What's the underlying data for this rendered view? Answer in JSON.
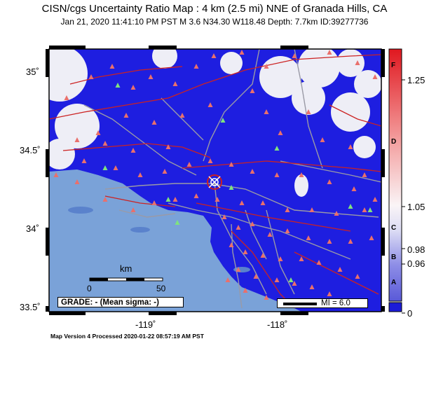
{
  "title": "CISN/cgs Uncertainty Ratio Map : 4 km (2.5 mi) NNE of Granada Hills, CA",
  "subtitle": "Jan 21, 2020 11:41:10 PM PST   M 3.6   N34.30 W118.48   Depth: 7.7km   ID:39277736",
  "axes": {
    "lat_labels": [
      "35˚",
      "34.5˚",
      "34˚",
      "33.5˚"
    ],
    "lon_labels": [
      "-119˚",
      "-118˚"
    ]
  },
  "scale_bar": {
    "unit": "km",
    "start": "0",
    "end": "50"
  },
  "grade_box": "GRADE: - (Mean sigma: -)",
  "mi_box": "MI = 6.0",
  "footer": "Map Version 4 Processed 2020-01-22 08:57:19 AM PST",
  "colorbar": {
    "tick_labels": [
      "1.25",
      "1.05",
      "0.98",
      "0.96",
      "0"
    ],
    "grade_letters": [
      "F",
      "D",
      "C",
      "B",
      "A"
    ],
    "colors": {
      "top": "#e8222a",
      "mid": "#f8f8fc",
      "bottom": "#1c1cd8"
    }
  },
  "colors": {
    "ocean": "#7aa2d8",
    "land_low": "#1e1ee0",
    "land_high": "#ffffff",
    "faults": "#cc2222",
    "roads": "#9a9aa6",
    "stations": "#e9706c",
    "stations_alt": "#7fe27f"
  },
  "epicenter": {
    "lat": 34.3,
    "lon": -118.48
  }
}
